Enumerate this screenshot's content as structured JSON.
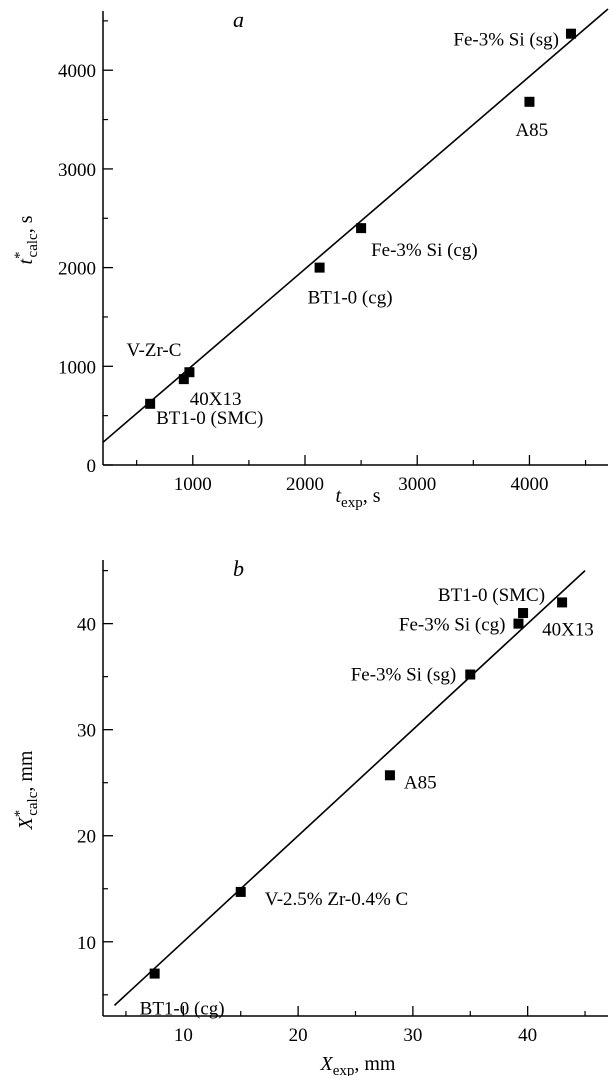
{
  "chart_data": [
    {
      "type": "scatter",
      "panel_label": "a",
      "xlabel": {
        "symbol": "t",
        "sub": "exp",
        "sup": "",
        "unit": ", s"
      },
      "ylabel": {
        "symbol": "t",
        "sub": "calc",
        "sup": "*",
        "unit": ", s"
      },
      "xlim": [
        200,
        4700
      ],
      "ylim": [
        0,
        4600
      ],
      "xticks": [
        1000,
        2000,
        3000,
        4000
      ],
      "yticks": [
        0,
        1000,
        2000,
        3000,
        4000
      ],
      "fit_line": [
        [
          200,
          230
        ],
        [
          4700,
          4620
        ]
      ],
      "points": [
        {
          "x": 620,
          "y": 620,
          "label": "BT1-0 (SMC)"
        },
        {
          "x": 920,
          "y": 870,
          "label": "40X13"
        },
        {
          "x": 970,
          "y": 940,
          "label": "V-Zr-C"
        },
        {
          "x": 2130,
          "y": 2000,
          "label": "BT1-0 (cg)"
        },
        {
          "x": 2500,
          "y": 2400,
          "label": "Fe-3% Si (cg)"
        },
        {
          "x": 4000,
          "y": 3680,
          "label": "A85"
        },
        {
          "x": 4370,
          "y": 4370,
          "label": "Fe-3% Si (sg)"
        }
      ]
    },
    {
      "type": "scatter",
      "panel_label": "b",
      "xlabel": {
        "symbol": "X",
        "sub": "exp",
        "sup": "",
        "unit": ", mm"
      },
      "ylabel": {
        "symbol": "X",
        "sub": "calc",
        "sup": "*",
        "unit": ", mm"
      },
      "xlim": [
        3,
        47
      ],
      "ylim": [
        3,
        46
      ],
      "xticks": [
        10,
        20,
        30,
        40
      ],
      "yticks": [
        10,
        20,
        30,
        40
      ],
      "fit_line": [
        [
          4,
          4
        ],
        [
          45,
          45
        ]
      ],
      "points": [
        {
          "x": 7.5,
          "y": 7,
          "label": "BT1-0 (cg)"
        },
        {
          "x": 15,
          "y": 14.7,
          "label": "V-2.5% Zr-0.4% C"
        },
        {
          "x": 28,
          "y": 25.7,
          "label": "A85"
        },
        {
          "x": 35,
          "y": 35.2,
          "label": "Fe-3% Si (sg)"
        },
        {
          "x": 39.2,
          "y": 40,
          "label": "Fe-3% Si (cg)"
        },
        {
          "x": 39.6,
          "y": 41,
          "label": "BT1-0 (SMC)"
        },
        {
          "x": 43,
          "y": 42,
          "label": "40X13"
        }
      ]
    }
  ]
}
